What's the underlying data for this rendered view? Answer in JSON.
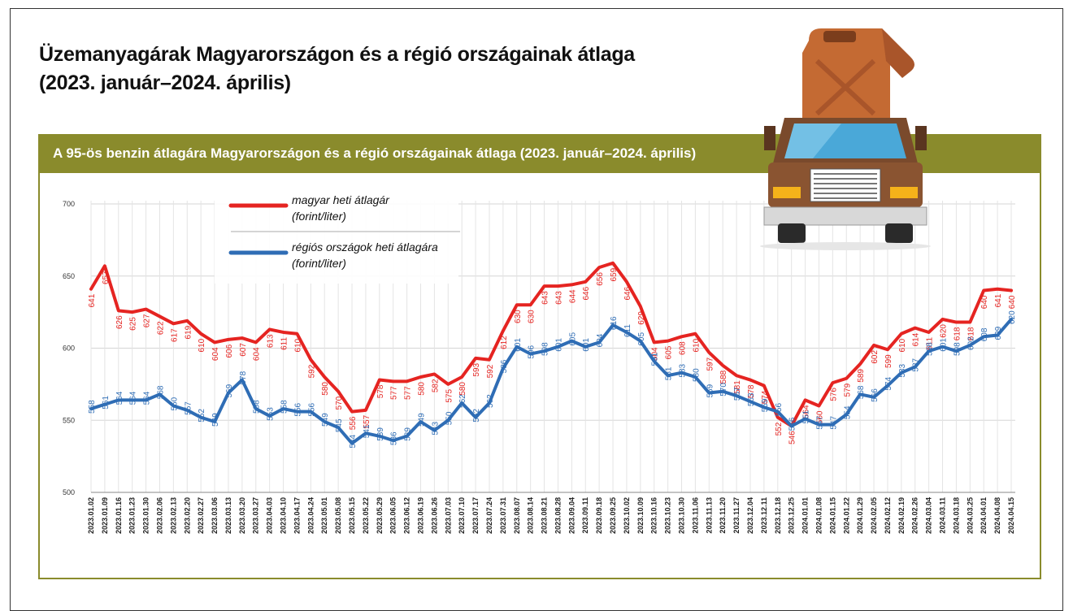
{
  "header": {
    "title_line1": "Üzemanyagárak Magyarországon és a régió országainak átlaga",
    "title_line2": "(2023. január–2024. április)"
  },
  "banner": {
    "text": "A 95-ös benzin átlagára Magyarországon és a régió országainak átlaga (2023. január–2024. április)"
  },
  "illustration": {
    "icon": "truck-with-fuel-canister-icon"
  },
  "colors": {
    "banner": "#8a8b2c",
    "hungary": "#e52421",
    "region": "#2f6db5"
  },
  "chart_data": {
    "type": "line",
    "title": "",
    "xlabel": "",
    "ylabel": "",
    "ylim": [
      500,
      700
    ],
    "yticks": [
      500,
      550,
      600,
      650,
      700
    ],
    "grid": true,
    "legend_position": "top-left",
    "x": [
      "2023.01.02",
      "2023.01.09",
      "2023.01.16",
      "2023.01.23",
      "2023.01.30",
      "2023.02.06",
      "2023.02.13",
      "2023.02.20",
      "2023.02.27",
      "2023.03.06",
      "2023.03.13",
      "2023.03.20",
      "2023.03.27",
      "2023.04.03",
      "2023.04.10",
      "2023.04.17",
      "2023.04.24",
      "2023.05.01",
      "2023.05.08",
      "2023.05.15",
      "2023.05.22",
      "2023.05.29",
      "2023.06.05",
      "2023.06.12",
      "2023.06.19",
      "2023.06.26",
      "2023.07.03",
      "2023.07.10",
      "2023.07.17",
      "2023.07.24",
      "2023.07.31",
      "2023.08.07",
      "2023.08.14",
      "2023.08.21",
      "2023.08.28",
      "2023.09.04",
      "2023.09.11",
      "2023.09.18",
      "2023.09.25",
      "2023.10.02",
      "2023.10.09",
      "2023.10.16",
      "2023.10.23",
      "2023.10.30",
      "2023.11.06",
      "2023.11.13",
      "2023.11.20",
      "2023.11.27",
      "2023.12.04",
      "2023.12.11",
      "2023.12.18",
      "2023.12.25",
      "2024.01.01",
      "2024.01.08",
      "2024.01.15",
      "2024.01.22",
      "2024.01.29",
      "2024.02.05",
      "2024.02.12",
      "2024.02.19",
      "2024.02.26",
      "2024.03.04",
      "2024.03.11",
      "2024.03.18",
      "2024.03.25",
      "2024.04.01",
      "2024.04.08",
      "2024.04.15"
    ],
    "series": [
      {
        "name": "magyar heti átlagár",
        "name_unit": "(forint/liter)",
        "values": [
          641,
          657,
          626,
          625,
          627,
          622,
          617,
          619,
          610,
          604,
          606,
          607,
          604,
          613,
          611,
          610,
          592,
          580,
          570,
          556,
          557,
          578,
          577,
          577,
          580,
          582,
          575,
          580,
          593,
          592,
          612,
          630,
          630,
          643,
          643,
          644,
          646,
          656,
          659,
          646,
          629,
          604,
          605,
          608,
          610,
          597,
          588,
          581,
          578,
          574,
          552,
          546,
          564,
          560,
          576,
          579,
          589,
          602,
          599,
          610,
          614,
          611,
          620,
          618,
          618,
          640,
          641,
          640
        ],
        "value_labels": [
          "641",
          "657",
          "626",
          "625",
          "627",
          "622",
          "617",
          "619",
          "610",
          "604",
          "606",
          "607",
          "604",
          "613",
          "611",
          "610",
          "592",
          "580",
          "570",
          "556",
          "557",
          "578",
          "577",
          "577",
          "580",
          "582",
          "575",
          "580",
          "593",
          "592",
          "612",
          "630",
          "630",
          "643",
          "643",
          "644",
          "646",
          "656",
          "659",
          "646",
          "629",
          "604",
          "605",
          "608",
          "610",
          "597",
          "588",
          "581",
          "578",
          "574",
          "552",
          "546",
          "564",
          "560",
          "576",
          "579",
          "589",
          "602",
          "599",
          "610",
          "614",
          "611",
          "620",
          "618",
          "618",
          "640",
          "641",
          "640"
        ]
      },
      {
        "name": "régiós országok heti átlagára",
        "name_unit": "(forint/liter)",
        "values": [
          558,
          561,
          564,
          564,
          564,
          568,
          560,
          557,
          552,
          549,
          569,
          578,
          558,
          553,
          558,
          556,
          556,
          549,
          545,
          534,
          541,
          539,
          536,
          539,
          549,
          543,
          550,
          562,
          552,
          562,
          586,
          601,
          596,
          598,
          601,
          605,
          601,
          604,
          616,
          611,
          605,
          591,
          581,
          583,
          580,
          569,
          570,
          567,
          563,
          559,
          556,
          546,
          551,
          547,
          547,
          554,
          568,
          566,
          574,
          583,
          587,
          598,
          601,
          598,
          602,
          608,
          609,
          620
        ],
        "value_labels": [
          "558",
          "561",
          "564",
          "564",
          "564",
          "568",
          "560",
          "557",
          "552",
          "549",
          "569",
          "578",
          "558",
          "553",
          "558",
          "556",
          "556",
          "549",
          "545",
          "534",
          "541",
          "539",
          "536",
          "539",
          "549",
          "543",
          "550",
          "562",
          "552",
          "562",
          "586",
          "601",
          "596",
          "598",
          "601",
          "605",
          "601",
          "604",
          "616",
          "611",
          "605",
          "591",
          "581",
          "583",
          "580",
          "569",
          "570",
          "567",
          "563",
          "559",
          "556",
          "546",
          "551",
          "547",
          "547",
          "554",
          "568",
          "566",
          "574",
          "583",
          "587",
          "598",
          "601",
          "598",
          "602",
          "608",
          "609",
          "620"
        ]
      }
    ]
  }
}
